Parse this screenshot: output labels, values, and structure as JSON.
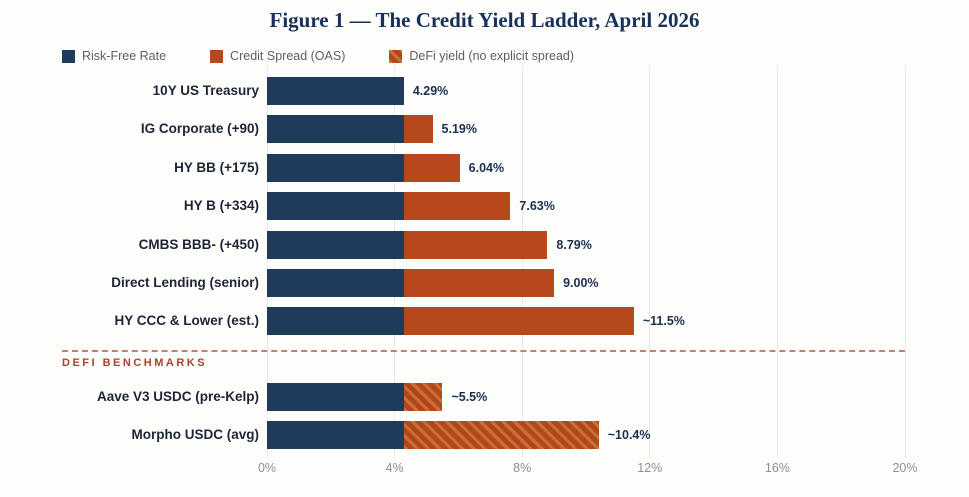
{
  "figure": {
    "title": "Figure 1 — The Credit Yield Ladder, April 2026"
  },
  "chart_data": {
    "type": "bar",
    "orientation": "horizontal",
    "stacked": true,
    "title": "Figure 1 — The Credit Yield Ladder, April 2026",
    "xlim": [
      0,
      20
    ],
    "x_tick_values": [
      0,
      4,
      8,
      12,
      16,
      20
    ],
    "x_tick_labels": [
      "0%",
      "4%",
      "8%",
      "12%",
      "16%",
      "20%"
    ],
    "grid": "vertical",
    "legend_position": "top-left",
    "legend": [
      {
        "label": "Risk-Free Rate",
        "color": "#1f3b5c",
        "pattern": "solid"
      },
      {
        "label": "Credit Spread (OAS)",
        "color": "#b5491c",
        "pattern": "solid"
      },
      {
        "label": "DeFi yield (no explicit spread)",
        "color": "#b5491c",
        "pattern": "hatch"
      }
    ],
    "risk_free_rate": 4.29,
    "sections": [
      {
        "name": "",
        "rows": [
          {
            "category": "10Y US Treasury",
            "risk_free": 4.29,
            "spread": 0.0,
            "total": 4.29,
            "annotation": "4.29%",
            "hatch": false
          },
          {
            "category": "IG Corporate (+90)",
            "risk_free": 4.29,
            "spread": 0.9,
            "total": 5.19,
            "annotation": "5.19%",
            "hatch": false
          },
          {
            "category": "HY BB (+175)",
            "risk_free": 4.29,
            "spread": 1.75,
            "total": 6.04,
            "annotation": "6.04%",
            "hatch": false
          },
          {
            "category": "HY B (+334)",
            "risk_free": 4.29,
            "spread": 3.34,
            "total": 7.63,
            "annotation": "7.63%",
            "hatch": false
          },
          {
            "category": "CMBS BBB- (+450)",
            "risk_free": 4.29,
            "spread": 4.5,
            "total": 8.79,
            "annotation": "8.79%",
            "hatch": false
          },
          {
            "category": "Direct Lending (senior)",
            "risk_free": 4.29,
            "spread": 4.71,
            "total": 9.0,
            "annotation": "9.00%",
            "hatch": false
          },
          {
            "category": "HY CCC & Lower (est.)",
            "risk_free": 4.29,
            "spread": 7.21,
            "total": 11.5,
            "annotation": "~11.5%",
            "hatch": false
          }
        ]
      },
      {
        "name": "DEFI BENCHMARKS",
        "rows": [
          {
            "category": "Aave V3 USDC (pre-Kelp)",
            "risk_free": 4.29,
            "spread": 1.21,
            "total": 5.5,
            "annotation": "~5.5%",
            "hatch": true
          },
          {
            "category": "Morpho USDC (avg)",
            "risk_free": 4.29,
            "spread": 6.11,
            "total": 10.4,
            "annotation": "~10.4%",
            "hatch": true
          }
        ]
      }
    ],
    "separator": {
      "label": "DEFI BENCHMARKS",
      "style": "dashed",
      "color": "#b7584a"
    },
    "colors": {
      "risk_free": "#1f3b5c",
      "spread": "#b5491c",
      "hatch_stripe": "#cd6d3e",
      "title": "#17315a",
      "category_label": "#1d2535",
      "value_label": "#1b2f4e",
      "tick_label": "#8a8f98",
      "gridline": "#e9e8e4",
      "separator": "#b7584a",
      "defi_section_label": "#a8432d",
      "background": "#fdfdfc"
    }
  }
}
